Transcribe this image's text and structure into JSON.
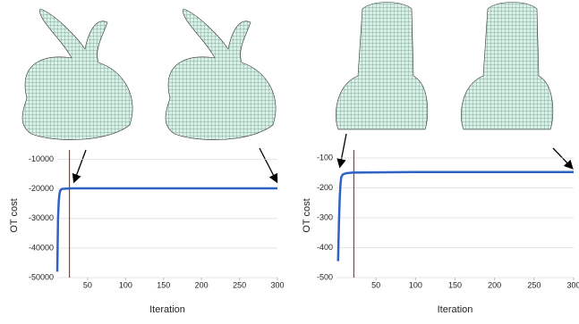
{
  "chart_data": [
    {
      "type": "line",
      "xlabel": "Iteration",
      "ylabel": "OT cost",
      "xlim": [
        10,
        300
      ],
      "xticks": [
        50,
        100,
        150,
        200,
        250,
        300
      ],
      "ylim": [
        -50000,
        -8000
      ],
      "yticks": [
        -50000,
        -40000,
        -30000,
        -20000,
        -10000
      ],
      "grid": true,
      "vline": 26,
      "vline_color": "#a33a2e",
      "series": [
        {
          "color": "#2e62c4",
          "x": [
            10,
            11,
            12,
            13,
            14,
            16,
            20,
            30,
            50,
            100,
            200,
            300
          ],
          "values": [
            -48000,
            -30000,
            -24000,
            -21500,
            -20500,
            -20000,
            -19900,
            -19800,
            -19800,
            -19800,
            -19800,
            -19800
          ]
        }
      ]
    },
    {
      "type": "line",
      "xlabel": "Iteration",
      "ylabel": "OT cost",
      "xlim": [
        0,
        300
      ],
      "xticks": [
        50,
        100,
        150,
        200,
        250,
        300
      ],
      "ylim": [
        -500,
        -85
      ],
      "yticks": [
        -500,
        -400,
        -300,
        -200,
        -100
      ],
      "grid": true,
      "vline": 22,
      "vline_color": "#a33a2e",
      "series": [
        {
          "color": "#2e62c4",
          "x": [
            2,
            3,
            4,
            5,
            6,
            8,
            12,
            20,
            50,
            100,
            200,
            300
          ],
          "values": [
            -445,
            -330,
            -240,
            -190,
            -165,
            -155,
            -151,
            -149,
            -148,
            -147,
            -147,
            -147
          ]
        }
      ]
    }
  ]
}
